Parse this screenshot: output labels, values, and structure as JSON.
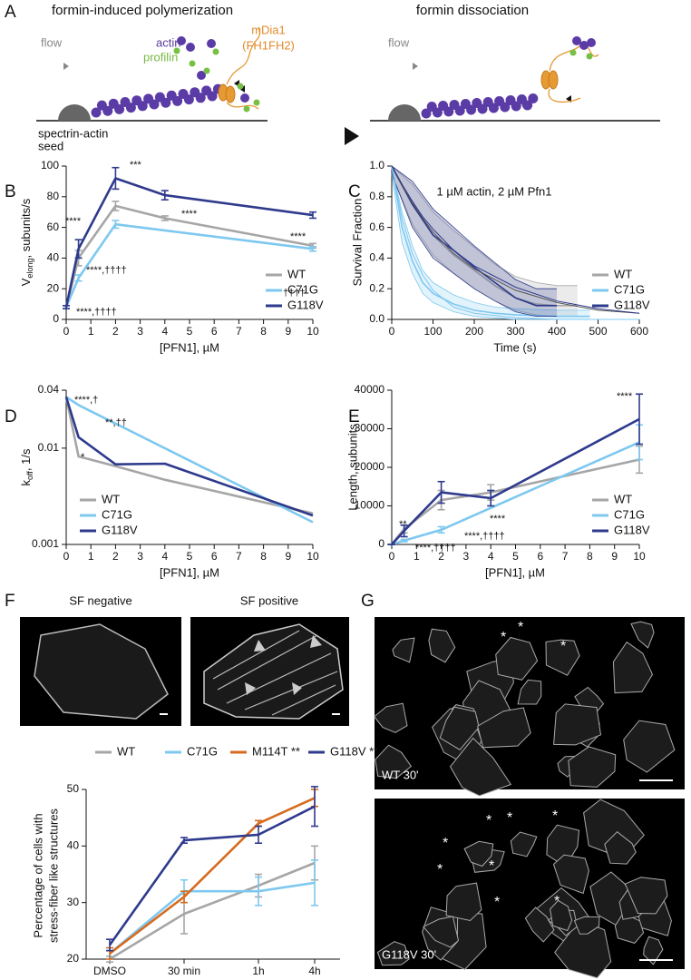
{
  "schematic": {
    "panel": "A",
    "title_left": "formin-induced polymerization",
    "title_right": "formin dissociation",
    "flow_left": "flow",
    "actin": "actin",
    "profilin": "profilin",
    "formin": "mDia1",
    "formin_domain": "(FH1FH2)",
    "seed": [
      "spectrin-actin",
      "seed"
    ],
    "flow_right": "flow"
  },
  "chart_data": [
    {
      "type": "line",
      "panel": "B",
      "xlabel": "[PFN1], µM",
      "ylabel": {
        "text": "V",
        "sub": "elong",
        "rest": ", subunits/s"
      },
      "xlim": [
        0,
        10
      ],
      "xticks": [
        0,
        1,
        2,
        3,
        4,
        5,
        6,
        7,
        8,
        9,
        10
      ],
      "ylim": [
        0,
        100
      ],
      "yticks": [
        0,
        20,
        40,
        60,
        80,
        100
      ],
      "legend": "lower right",
      "series": [
        {
          "name": "WT",
          "color": "#a6a6a6",
          "x": [
            0,
            0.5,
            2,
            4,
            10
          ],
          "values": [
            8,
            40,
            74,
            66,
            48
          ],
          "errors": [
            1,
            5,
            3,
            1.5,
            1.5
          ]
        },
        {
          "name": "C71G",
          "color": "#7ec8f0",
          "x": [
            0,
            0.5,
            2,
            10
          ],
          "values": [
            8,
            27,
            62,
            46
          ],
          "errors": [
            1,
            2,
            2.5,
            1.5
          ]
        },
        {
          "name": "G118V",
          "color": "#2e3a8c",
          "x": [
            0,
            0.5,
            2,
            4,
            10
          ],
          "values": [
            8,
            46,
            92,
            81,
            68
          ],
          "errors": [
            1,
            6,
            7,
            3,
            2
          ]
        }
      ],
      "annotations": [
        "****",
        "***",
        "****",
        "****",
        "****,††††",
        "****,††††",
        "††††"
      ]
    },
    {
      "type": "survival",
      "panel": "C",
      "title": "1 µM actin, 2 µM Pfn1",
      "xlabel": "Time (s)",
      "ylabel": "Survival Fraction",
      "xlim": [
        0,
        600
      ],
      "xticks": [
        0,
        100,
        200,
        300,
        400,
        500,
        600
      ],
      "ylim": [
        0,
        1
      ],
      "yticks": [
        {
          "value": 0,
          "label": "0.0"
        },
        0.2,
        0.4,
        0.6,
        0.8,
        {
          "value": 1,
          "label": "1.0"
        }
      ],
      "legend": "lower right",
      "series": [
        {
          "name": "WT",
          "color": "#a6a6a6",
          "x": [
            0,
            50,
            100,
            150,
            200,
            250,
            300,
            350,
            400,
            450
          ],
          "values": [
            1,
            0.75,
            0.55,
            0.42,
            0.32,
            0.22,
            0.14,
            0.1,
            0.09,
            0.09
          ],
          "lower": [
            0.95,
            0.62,
            0.42,
            0.3,
            0.2,
            0.12,
            0.06,
            0.03,
            0.02,
            0.02
          ],
          "upper": [
            1,
            0.88,
            0.7,
            0.58,
            0.47,
            0.36,
            0.28,
            0.24,
            0.22,
            0.22
          ],
          "fit": {
            "x": [
              0,
              25,
              50,
              75,
              100,
              150,
              200,
              300,
              400,
              500,
              600
            ],
            "values": [
              1,
              0.87,
              0.76,
              0.66,
              0.57,
              0.43,
              0.33,
              0.19,
              0.11,
              0.06,
              0.04
            ]
          }
        },
        {
          "name": "C71G",
          "color": "#7ec8f0",
          "x": [
            0,
            25,
            50,
            75,
            100,
            150,
            200,
            250,
            300,
            400,
            480
          ],
          "values": [
            1,
            0.6,
            0.38,
            0.24,
            0.17,
            0.1,
            0.06,
            0.04,
            0.03,
            0.02,
            0.02
          ],
          "lower": [
            0.95,
            0.5,
            0.3,
            0.17,
            0.11,
            0.05,
            0.02,
            0.01,
            0,
            0,
            0
          ],
          "upper": [
            1,
            0.7,
            0.48,
            0.32,
            0.24,
            0.16,
            0.11,
            0.08,
            0.07,
            0.06,
            0.06
          ],
          "fit": {
            "x": [
              0,
              25,
              50,
              75,
              100,
              150,
              200,
              300,
              400,
              500,
              600
            ],
            "values": [
              1,
              0.66,
              0.43,
              0.29,
              0.19,
              0.08,
              0.04,
              0.01,
              0,
              0,
              0
            ]
          }
        },
        {
          "name": "G118V",
          "color": "#2e3a8c",
          "x": [
            0,
            50,
            100,
            150,
            200,
            250,
            300,
            350,
            400
          ],
          "values": [
            1,
            0.75,
            0.55,
            0.45,
            0.34,
            0.24,
            0.14,
            0.09,
            0.09
          ],
          "lower": [
            0.95,
            0.6,
            0.4,
            0.3,
            0.2,
            0.12,
            0.05,
            0.02,
            0.02
          ],
          "upper": [
            1,
            0.9,
            0.72,
            0.6,
            0.48,
            0.37,
            0.26,
            0.2,
            0.2
          ],
          "fit": {
            "x": [
              0,
              25,
              50,
              75,
              100,
              150,
              200,
              300,
              400,
              500,
              600
            ],
            "values": [
              1,
              0.88,
              0.77,
              0.67,
              0.59,
              0.45,
              0.35,
              0.21,
              0.12,
              0.07,
              0.04
            ]
          }
        }
      ]
    },
    {
      "type": "line",
      "panel": "D",
      "xlabel": "[PFN1], µM",
      "ylabel": {
        "text": "k",
        "sub": "off",
        "rest": ", 1/s"
      },
      "log_y": true,
      "xlim": [
        0,
        10
      ],
      "xticks": [
        0,
        1,
        2,
        3,
        4,
        5,
        6,
        7,
        8,
        9,
        10
      ],
      "ylim": [
        0.001,
        0.04
      ],
      "yticks": [
        0.001,
        0.01,
        0.04
      ],
      "legend": "lower left",
      "series": [
        {
          "name": "WT",
          "color": "#a6a6a6",
          "x": [
            0,
            0.5,
            2,
            4,
            10
          ],
          "values": [
            0.034,
            0.0082,
            0.0065,
            0.0047,
            0.0021
          ]
        },
        {
          "name": "C71G",
          "color": "#7ec8f0",
          "x": [
            0,
            0.5,
            2,
            10
          ],
          "values": [
            0.034,
            0.028,
            0.018,
            0.0017
          ]
        },
        {
          "name": "G118V",
          "color": "#2e3a8c",
          "x": [
            0,
            0.5,
            2,
            4,
            10
          ],
          "values": [
            0.034,
            0.013,
            0.0068,
            0.0069,
            0.002
          ]
        }
      ],
      "annotations": [
        "****,†",
        "*",
        "**,††"
      ]
    },
    {
      "type": "line",
      "panel": "E",
      "xlabel": "[PFN1], µM",
      "ylabel": "Length, subunits",
      "xlim": [
        0,
        10
      ],
      "xticks": [
        0,
        1,
        2,
        3,
        4,
        5,
        6,
        7,
        8,
        9,
        10
      ],
      "ylim": [
        0,
        40000
      ],
      "yticks": [
        0,
        10000,
        20000,
        30000,
        40000
      ],
      "legend": "lower right",
      "series": [
        {
          "name": "WT",
          "color": "#a6a6a6",
          "x": [
            0,
            0.5,
            2,
            4,
            10
          ],
          "values": [
            0,
            4000,
            11500,
            13500,
            22000
          ],
          "errors": [
            0,
            1000,
            2500,
            2000,
            3500
          ]
        },
        {
          "name": "C71G",
          "color": "#7ec8f0",
          "x": [
            0,
            0.5,
            2,
            10
          ],
          "values": [
            0,
            1000,
            3800,
            26500
          ],
          "errors": [
            0,
            300,
            800,
            4500
          ]
        },
        {
          "name": "G118V",
          "color": "#2e3a8c",
          "x": [
            0,
            0.5,
            2,
            4,
            10
          ],
          "values": [
            0,
            3500,
            13500,
            12000,
            32500
          ],
          "errors": [
            0,
            1500,
            2800,
            2000,
            6500
          ]
        }
      ],
      "annotations": [
        "**",
        "****,††††",
        "****,††††",
        "****",
        "****"
      ]
    },
    {
      "type": "line",
      "ylabel": [
        "Percentage of cells with",
        "stress-fiber like structures"
      ],
      "categories": [
        "DMSO",
        "30 min",
        "1h",
        "4h"
      ],
      "ylim": [
        20,
        50
      ],
      "yticks": [
        20,
        30,
        40,
        50
      ],
      "legend": "top",
      "series": [
        {
          "name": "WT",
          "color": "#a6a6a6",
          "values": [
            20,
            28,
            33,
            37
          ],
          "errors": [
            0.5,
            3.5,
            2,
            3
          ]
        },
        {
          "name": "C71G",
          "color": "#7ec8f0",
          "values": [
            21,
            32,
            32,
            33.5
          ],
          "errors": [
            0.5,
            2,
            2.5,
            4
          ]
        },
        {
          "name": "M114T **",
          "color": "#d66b1f",
          "values": [
            21,
            31,
            44,
            48.5
          ],
          "errors": [
            1,
            1,
            0.5,
            1.5
          ]
        },
        {
          "name": "G118V **",
          "color": "#2e3a8c",
          "values": [
            22.5,
            41,
            42,
            47
          ],
          "errors": [
            1,
            0.5,
            1.5,
            3.5
          ]
        }
      ]
    }
  ],
  "micrographs": {
    "F": {
      "panel": "F",
      "negative": "SF negative",
      "positive": "SF positive"
    },
    "G": {
      "panel": "G",
      "top": {
        "label": "WT 30'",
        "asterisks": [
          "*",
          "*",
          "*"
        ]
      },
      "bottom": {
        "label": "G118V 30'",
        "asterisks": [
          "*",
          "*",
          "*",
          "*",
          "*",
          "*",
          "*",
          "*"
        ]
      }
    }
  }
}
